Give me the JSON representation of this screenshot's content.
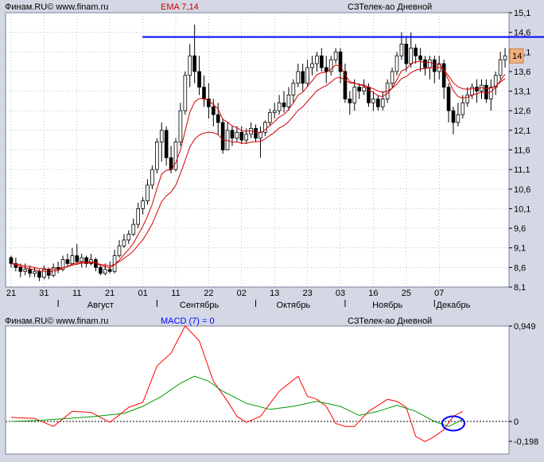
{
  "colors": {
    "bg": "#d4d8e4",
    "frame": "#7a8296",
    "panel": "#ffffff",
    "grid": "#8a96a8",
    "candle_up": "#ffffff",
    "candle_down": "#000000",
    "ema_fast": "#d40000",
    "ema_slow": "#d40000",
    "resistance": "#0000ff",
    "macd": "#ff0000",
    "signal": "#009900",
    "title_red": "#d00000",
    "title_blue": "#0000ff",
    "price_marker": "#f4b07c"
  },
  "icons": [
    "circle-annotation"
  ],
  "chart_data": [
    {
      "type": "candlestick",
      "header": {
        "source": "Финам.RU© www.finam.ru",
        "indicator": "EMA 7,14",
        "symbol": "СЗТелек-ао Дневной"
      },
      "ylim": [
        8.1,
        15.1
      ],
      "y_ticks": [
        "15,1",
        "14,6",
        "14,1",
        "13,6",
        "13,1",
        "12,6",
        "12,1",
        "11,6",
        "11,1",
        "10,6",
        "10,1",
        "9,6",
        "9,1",
        "8,6",
        "8,1"
      ],
      "y_tick_values": [
        15.1,
        14.6,
        14.1,
        13.6,
        13.1,
        12.6,
        12.1,
        11.6,
        11.1,
        10.6,
        10.1,
        9.6,
        9.1,
        8.6,
        8.1
      ],
      "x_day_labels": [
        {
          "label": "21",
          "index": 0
        },
        {
          "label": "31",
          "index": 7
        },
        {
          "label": "11",
          "index": 14
        },
        {
          "label": "21",
          "index": 21
        },
        {
          "label": "01",
          "index": 28
        },
        {
          "label": "11",
          "index": 35
        },
        {
          "label": "22",
          "index": 42
        },
        {
          "label": "02",
          "index": 49
        },
        {
          "label": "13",
          "index": 56
        },
        {
          "label": "23",
          "index": 63
        },
        {
          "label": "03",
          "index": 70
        },
        {
          "label": "16",
          "index": 77
        },
        {
          "label": "25",
          "index": 84
        },
        {
          "label": "07",
          "index": 91
        }
      ],
      "x_month_labels": [
        {
          "label": "Август",
          "index": 19
        },
        {
          "label": "Сентябрь",
          "index": 40
        },
        {
          "label": "Октябрь",
          "index": 60
        },
        {
          "label": "Ноябрь",
          "index": 80
        },
        {
          "label": "Декабрь",
          "index": 94
        }
      ],
      "x_month_separators": [
        10,
        31,
        52,
        71,
        90
      ],
      "candles": [
        [
          8.85,
          8.7,
          8.9,
          8.6
        ],
        [
          8.7,
          8.6,
          8.85,
          8.5
        ],
        [
          8.6,
          8.5,
          8.7,
          8.35
        ],
        [
          8.5,
          8.55,
          8.7,
          8.4
        ],
        [
          8.55,
          8.45,
          8.65,
          8.35
        ],
        [
          8.45,
          8.5,
          8.6,
          8.35
        ],
        [
          8.5,
          8.35,
          8.55,
          8.25
        ],
        [
          8.35,
          8.55,
          8.65,
          8.3
        ],
        [
          8.55,
          8.4,
          8.6,
          8.3
        ],
        [
          8.4,
          8.6,
          8.7,
          8.35
        ],
        [
          8.6,
          8.55,
          8.75,
          8.45
        ],
        [
          8.55,
          8.8,
          8.9,
          8.5
        ],
        [
          8.8,
          8.7,
          8.95,
          8.6
        ],
        [
          8.7,
          8.9,
          9.1,
          8.65
        ],
        [
          8.9,
          8.75,
          9.2,
          8.7
        ],
        [
          8.75,
          8.85,
          8.95,
          8.6
        ],
        [
          8.85,
          8.7,
          8.9,
          8.6
        ],
        [
          8.7,
          8.8,
          8.95,
          8.65
        ],
        [
          8.8,
          8.6,
          8.85,
          8.5
        ],
        [
          8.6,
          8.45,
          8.65,
          8.4
        ],
        [
          8.45,
          8.55,
          8.7,
          8.4
        ],
        [
          8.55,
          8.5,
          8.75,
          8.45
        ],
        [
          8.5,
          8.9,
          9.05,
          8.45
        ],
        [
          8.9,
          9.15,
          9.3,
          8.85
        ],
        [
          9.15,
          9.3,
          9.45,
          9.1
        ],
        [
          9.3,
          9.45,
          9.55,
          9.2
        ],
        [
          9.45,
          9.7,
          9.85,
          9.4
        ],
        [
          9.7,
          10.1,
          10.25,
          9.6
        ],
        [
          10.1,
          10.3,
          10.4,
          9.95
        ],
        [
          10.3,
          10.7,
          10.85,
          10.2
        ],
        [
          10.7,
          11.1,
          11.2,
          10.6
        ],
        [
          11.1,
          11.8,
          11.9,
          11.0
        ],
        [
          11.8,
          12.1,
          12.3,
          11.3
        ],
        [
          12.1,
          11.4,
          12.2,
          11.2
        ],
        [
          11.4,
          11.1,
          11.7,
          11.0
        ],
        [
          11.1,
          11.8,
          11.9,
          11.05
        ],
        [
          11.8,
          12.6,
          12.8,
          11.7
        ],
        [
          12.6,
          13.5,
          13.6,
          12.5
        ],
        [
          13.5,
          14.0,
          14.3,
          13.2
        ],
        [
          14.0,
          13.6,
          14.8,
          13.3
        ],
        [
          13.6,
          13.2,
          14.0,
          13.0
        ],
        [
          13.2,
          12.9,
          13.5,
          12.7
        ],
        [
          12.9,
          12.7,
          13.3,
          12.4
        ],
        [
          12.7,
          12.5,
          12.9,
          12.2
        ],
        [
          12.5,
          12.3,
          12.8,
          12.0
        ],
        [
          12.3,
          11.6,
          12.4,
          11.5
        ],
        [
          11.6,
          12.1,
          12.3,
          11.6
        ],
        [
          12.1,
          11.9,
          12.2,
          11.7
        ],
        [
          11.9,
          12.05,
          12.2,
          11.8
        ],
        [
          12.05,
          11.85,
          12.2,
          11.75
        ],
        [
          11.85,
          12.0,
          12.15,
          11.75
        ],
        [
          12.0,
          12.15,
          12.3,
          11.9
        ],
        [
          12.15,
          11.9,
          12.25,
          11.8
        ],
        [
          11.9,
          12.05,
          12.2,
          11.4
        ],
        [
          12.05,
          12.3,
          12.35,
          11.95
        ],
        [
          12.3,
          12.55,
          12.65,
          12.2
        ],
        [
          12.55,
          12.6,
          12.8,
          12.4
        ],
        [
          12.6,
          12.8,
          13.0,
          12.5
        ],
        [
          12.8,
          12.7,
          13.1,
          12.55
        ],
        [
          12.7,
          13.0,
          13.2,
          12.6
        ],
        [
          13.0,
          13.3,
          13.4,
          12.8
        ],
        [
          13.3,
          13.6,
          13.8,
          13.2
        ],
        [
          13.6,
          13.3,
          13.8,
          13.1
        ],
        [
          13.3,
          13.7,
          13.9,
          13.2
        ],
        [
          13.7,
          13.8,
          14.0,
          13.5
        ],
        [
          13.8,
          14.0,
          14.1,
          13.6
        ],
        [
          14.0,
          13.7,
          14.2,
          13.6
        ],
        [
          13.7,
          13.6,
          14.0,
          13.3
        ],
        [
          13.6,
          13.9,
          14.0,
          13.5
        ],
        [
          13.9,
          14.1,
          14.2,
          13.8
        ],
        [
          14.1,
          13.6,
          14.2,
          13.3
        ],
        [
          13.6,
          12.9,
          13.8,
          12.8
        ],
        [
          12.9,
          12.8,
          13.1,
          12.5
        ],
        [
          12.8,
          13.2,
          13.4,
          12.6
        ],
        [
          13.2,
          13.1,
          13.3,
          12.9
        ],
        [
          13.1,
          13.2,
          13.4,
          13.0
        ],
        [
          13.2,
          12.8,
          13.3,
          12.7
        ],
        [
          12.8,
          12.9,
          13.1,
          12.6
        ],
        [
          12.9,
          12.7,
          13.0,
          12.6
        ],
        [
          12.7,
          12.9,
          13.1,
          12.6
        ],
        [
          12.9,
          13.3,
          13.4,
          12.8
        ],
        [
          13.3,
          13.6,
          13.7,
          13.2
        ],
        [
          13.6,
          14.0,
          14.1,
          13.5
        ],
        [
          14.0,
          14.3,
          14.6,
          13.9
        ],
        [
          14.3,
          13.8,
          14.5,
          13.6
        ],
        [
          13.8,
          14.2,
          14.6,
          13.7
        ],
        [
          14.2,
          14.0,
          14.3,
          13.8
        ],
        [
          14.0,
          13.9,
          14.2,
          13.6
        ],
        [
          13.9,
          13.7,
          14.0,
          13.5
        ],
        [
          13.7,
          13.9,
          14.0,
          13.4
        ],
        [
          13.9,
          13.6,
          14.0,
          13.3
        ],
        [
          13.6,
          13.8,
          14.0,
          13.4
        ],
        [
          13.8,
          13.2,
          13.9,
          12.9
        ],
        [
          13.2,
          12.6,
          13.3,
          12.3
        ],
        [
          12.6,
          12.3,
          12.7,
          12.0
        ],
        [
          12.3,
          12.5,
          12.8,
          12.2
        ],
        [
          12.5,
          12.8,
          13.0,
          12.4
        ],
        [
          12.8,
          13.0,
          13.2,
          12.7
        ],
        [
          13.0,
          13.2,
          13.3,
          12.9
        ],
        [
          13.2,
          13.1,
          13.4,
          12.8
        ],
        [
          13.1,
          13.25,
          13.4,
          12.9
        ],
        [
          13.25,
          12.9,
          13.4,
          12.8
        ],
        [
          12.9,
          13.2,
          13.4,
          12.6
        ],
        [
          13.2,
          13.5,
          13.6,
          13.0
        ],
        [
          13.5,
          13.9,
          14.1,
          13.4
        ],
        [
          13.9,
          14.0,
          14.2,
          13.7
        ]
      ],
      "resistance": {
        "value": 14.48,
        "from_index": 33
      },
      "last_price": {
        "label": "14"
      },
      "ema_fast": [
        8.7,
        8.67,
        8.62,
        8.6,
        8.56,
        8.55,
        8.5,
        8.51,
        8.48,
        8.51,
        8.52,
        8.59,
        8.62,
        8.69,
        8.71,
        8.74,
        8.73,
        8.75,
        8.71,
        8.65,
        8.62,
        8.59,
        8.67,
        8.79,
        8.93,
        9.06,
        9.22,
        9.44,
        9.65,
        9.91,
        10.21,
        10.61,
        10.98,
        11.08,
        11.09,
        11.27,
        11.6,
        12.08,
        12.56,
        12.82,
        12.91,
        12.91,
        12.85,
        12.76,
        12.64,
        12.38,
        12.31,
        12.21,
        12.17,
        12.09,
        12.07,
        12.09,
        12.04,
        12.04,
        12.11,
        12.22,
        12.32,
        12.44,
        12.5,
        12.63,
        12.8,
        13.0,
        13.07,
        13.22,
        13.36,
        13.52,
        13.57,
        13.58,
        13.66,
        13.77,
        13.73,
        13.52,
        13.34,
        13.31,
        13.26,
        13.24,
        13.13,
        13.07,
        12.98,
        12.96,
        13.04,
        13.18,
        13.39,
        13.62,
        13.66,
        13.8,
        13.85,
        13.86,
        13.82,
        13.84,
        13.78,
        13.79,
        13.64,
        13.38,
        13.11,
        12.96,
        12.92,
        12.94,
        13.0,
        13.03,
        13.08,
        13.04,
        13.08,
        13.19,
        13.37,
        13.53
      ],
      "ema_slow": [
        8.7,
        8.69,
        8.66,
        8.64,
        8.62,
        8.6,
        8.57,
        8.57,
        8.55,
        8.56,
        8.56,
        8.6,
        8.62,
        8.66,
        8.68,
        8.71,
        8.71,
        8.72,
        8.71,
        8.68,
        8.66,
        8.64,
        8.68,
        8.75,
        8.83,
        8.92,
        9.02,
        9.17,
        9.31,
        9.5,
        9.71,
        10.0,
        10.28,
        10.43,
        10.52,
        10.7,
        11.0,
        11.33,
        11.67,
        11.87,
        11.98,
        12.03,
        12.05,
        12.04,
        11.99,
        11.86,
        11.84,
        11.8,
        11.8,
        11.77,
        11.77,
        11.8,
        11.81,
        11.82,
        11.88,
        11.97,
        12.05,
        12.16,
        12.22,
        12.32,
        12.46,
        12.61,
        12.7,
        12.84,
        12.97,
        13.11,
        13.18,
        13.24,
        13.33,
        13.43,
        13.45,
        13.38,
        13.31,
        13.3,
        13.27,
        13.26,
        13.2,
        13.16,
        13.1,
        13.07,
        13.1,
        13.17,
        13.28,
        13.42,
        13.47,
        13.57,
        13.63,
        13.67,
        13.67,
        13.7,
        13.69,
        13.71,
        13.64,
        13.49,
        13.31,
        13.21,
        13.16,
        13.15,
        13.16,
        13.16,
        13.19,
        13.16,
        13.18,
        13.23,
        13.33,
        13.42
      ]
    },
    {
      "type": "line",
      "header": {
        "source": "Финам.RU© www.finam.ru",
        "indicator": "MACD (7) = 0",
        "symbol": "СЗТелек-ао Дневной"
      },
      "ylim": [
        -0.198,
        0.949
      ],
      "y_ticks": [
        "0,949",
        "0",
        "-0,198"
      ],
      "y_tick_values": [
        0.949,
        0,
        -0.198
      ],
      "zero_line": true,
      "series": [
        {
          "key": "macd",
          "points": [
            [
              0,
              0.04
            ],
            [
              5,
              0.03
            ],
            [
              9,
              -0.05
            ],
            [
              13,
              0.1
            ],
            [
              17,
              0.09
            ],
            [
              21,
              -0.01
            ],
            [
              25,
              0.14
            ],
            [
              28,
              0.19
            ],
            [
              31,
              0.55
            ],
            [
              34,
              0.68
            ],
            [
              37,
              0.95
            ],
            [
              40,
              0.8
            ],
            [
              43,
              0.4
            ],
            [
              46,
              0.2
            ],
            [
              48,
              0.05
            ],
            [
              50,
              -0.01
            ],
            [
              53,
              0.05
            ],
            [
              57,
              0.3
            ],
            [
              61,
              0.45
            ],
            [
              63,
              0.25
            ],
            [
              65,
              0.22
            ],
            [
              67,
              0.15
            ],
            [
              69,
              -0.02
            ],
            [
              71,
              -0.05
            ],
            [
              73,
              -0.05
            ],
            [
              76,
              0.1
            ],
            [
              80,
              0.22
            ],
            [
              82,
              0.2
            ],
            [
              84,
              0.14
            ],
            [
              86,
              -0.15
            ],
            [
              88,
              -0.2
            ],
            [
              90,
              -0.15
            ],
            [
              92,
              -0.08
            ],
            [
              94,
              0.05
            ],
            [
              96,
              0.1
            ]
          ]
        },
        {
          "key": "signal",
          "points": [
            [
              0,
              0.0
            ],
            [
              6,
              0.01
            ],
            [
              12,
              0.03
            ],
            [
              18,
              0.05
            ],
            [
              24,
              0.08
            ],
            [
              28,
              0.15
            ],
            [
              32,
              0.25
            ],
            [
              36,
              0.38
            ],
            [
              39,
              0.45
            ],
            [
              42,
              0.4
            ],
            [
              45,
              0.3
            ],
            [
              50,
              0.18
            ],
            [
              55,
              0.12
            ],
            [
              60,
              0.15
            ],
            [
              65,
              0.2
            ],
            [
              70,
              0.15
            ],
            [
              74,
              0.06
            ],
            [
              78,
              0.1
            ],
            [
              82,
              0.16
            ],
            [
              86,
              0.1
            ],
            [
              90,
              0.0
            ],
            [
              93,
              -0.05
            ],
            [
              96,
              0.02
            ]
          ]
        }
      ],
      "annotation": {
        "shape": "ellipse",
        "x_index": 94,
        "y_value": -0.02
      }
    }
  ]
}
